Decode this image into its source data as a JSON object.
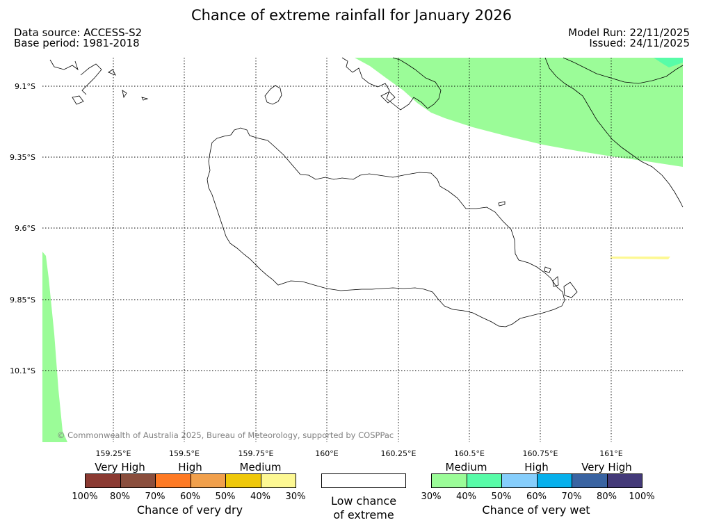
{
  "header": {
    "title": "Chance of extreme rainfall for January 2026",
    "source_line": "Data source: ACCESS-S2",
    "base_line": "Base period: 1981-2018",
    "model_run_line": "Model Run: 22/11/2025",
    "issued_line": "Issued: 24/11/2025"
  },
  "map": {
    "lat_labels": [
      "9.1°S",
      "9.35°S",
      "9.6°S",
      "9.85°S",
      "10.1°S"
    ],
    "lon_labels": [
      "159.25°E",
      "159.5°E",
      "159.75°E",
      "160°E",
      "160.25°E",
      "160.5°E",
      "160.75°E",
      "161°E"
    ],
    "copyright": "© Commonwealth of Australia 2025, Bureau of Meteorology, supported by COSPPac",
    "colors": {
      "medium_wet": "#9bfc98",
      "medium_high_wet": "#58fca8",
      "dry_30_40": "#fdf893",
      "coastline": "#000000",
      "grid": "#000000"
    }
  },
  "legend": {
    "dry": {
      "categories": [
        "Very High",
        "High",
        "Medium"
      ],
      "percent_labels": [
        "100%",
        "80%",
        "70%",
        "60%",
        "50%",
        "40%",
        "30%"
      ],
      "colors": [
        "#8b3a32",
        "#8a4e3d",
        "#fe7a24",
        "#f1a04c",
        "#efc80a",
        "#fdf893"
      ],
      "title": "Chance of very dry"
    },
    "low": {
      "line1": "Low chance",
      "line2": "of extreme",
      "color": "#ffffff"
    },
    "wet": {
      "categories": [
        "Medium",
        "High",
        "Very High"
      ],
      "percent_labels": [
        "30%",
        "40%",
        "50%",
        "60%",
        "70%",
        "80%",
        "100%"
      ],
      "colors": [
        "#9bfc98",
        "#58fca8",
        "#86cefc",
        "#06b0ec",
        "#3a64a2",
        "#443a79"
      ],
      "title": "Chance of very wet"
    }
  }
}
